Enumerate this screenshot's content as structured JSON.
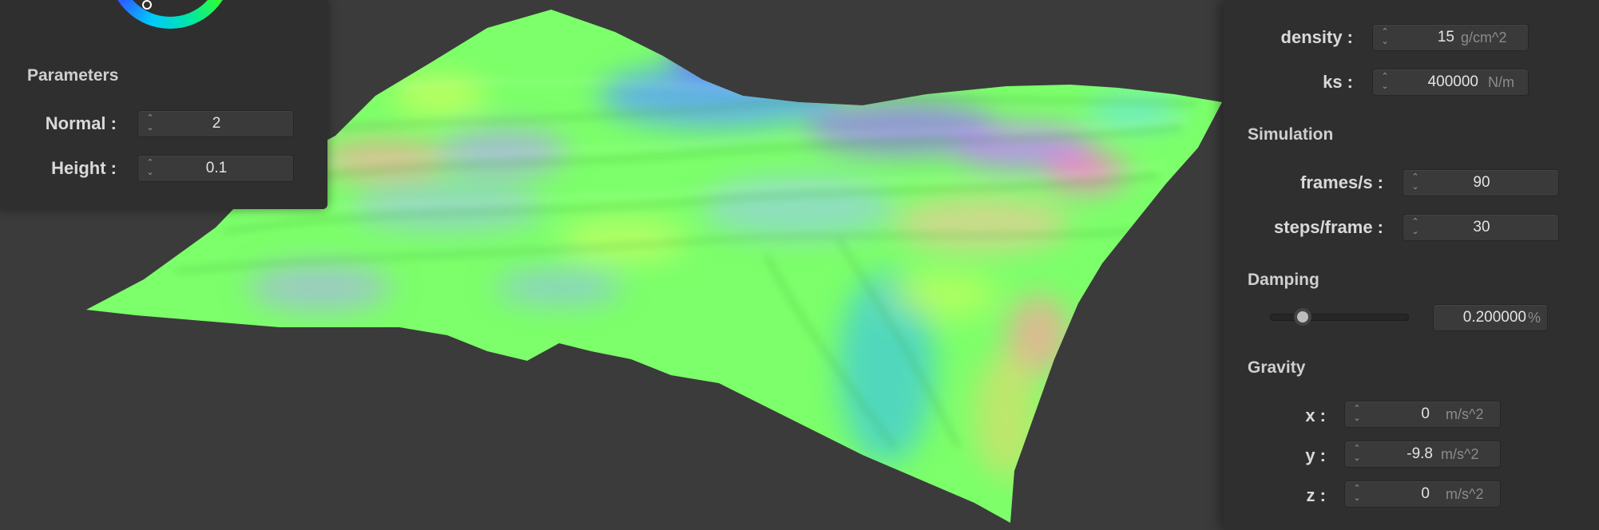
{
  "left_panel": {
    "section_title": "Parameters",
    "normal": {
      "label": "Normal :",
      "value": "2"
    },
    "height": {
      "label": "Height :",
      "value": "0.1"
    }
  },
  "right_panel": {
    "density": {
      "label": "density :",
      "value": "15",
      "unit": "g/cm^2"
    },
    "ks": {
      "label": "ks :",
      "value": "400000",
      "unit": "N/m"
    },
    "simulation": {
      "title": "Simulation",
      "frames": {
        "label": "frames/s :",
        "value": "90"
      },
      "steps": {
        "label": "steps/frame :",
        "value": "30"
      }
    },
    "damping": {
      "title": "Damping",
      "slider_fraction": 0.2,
      "value": "0.200000",
      "unit": "%"
    },
    "gravity": {
      "title": "Gravity",
      "x": {
        "label": "x :",
        "value": "0",
        "unit": "m/s^2"
      },
      "y": {
        "label": "y :",
        "value": "-9.8",
        "unit": "m/s^2"
      },
      "z": {
        "label": "z :",
        "value": "0",
        "unit": "m/s^2"
      }
    }
  },
  "colors": {
    "background": "#3b3b3b",
    "panel": "#2f2f2f",
    "field": "#3a3a3a",
    "mesh_base": "#7cff6a"
  },
  "icons": {
    "spin_arrows": "updown-chevron-icon"
  }
}
